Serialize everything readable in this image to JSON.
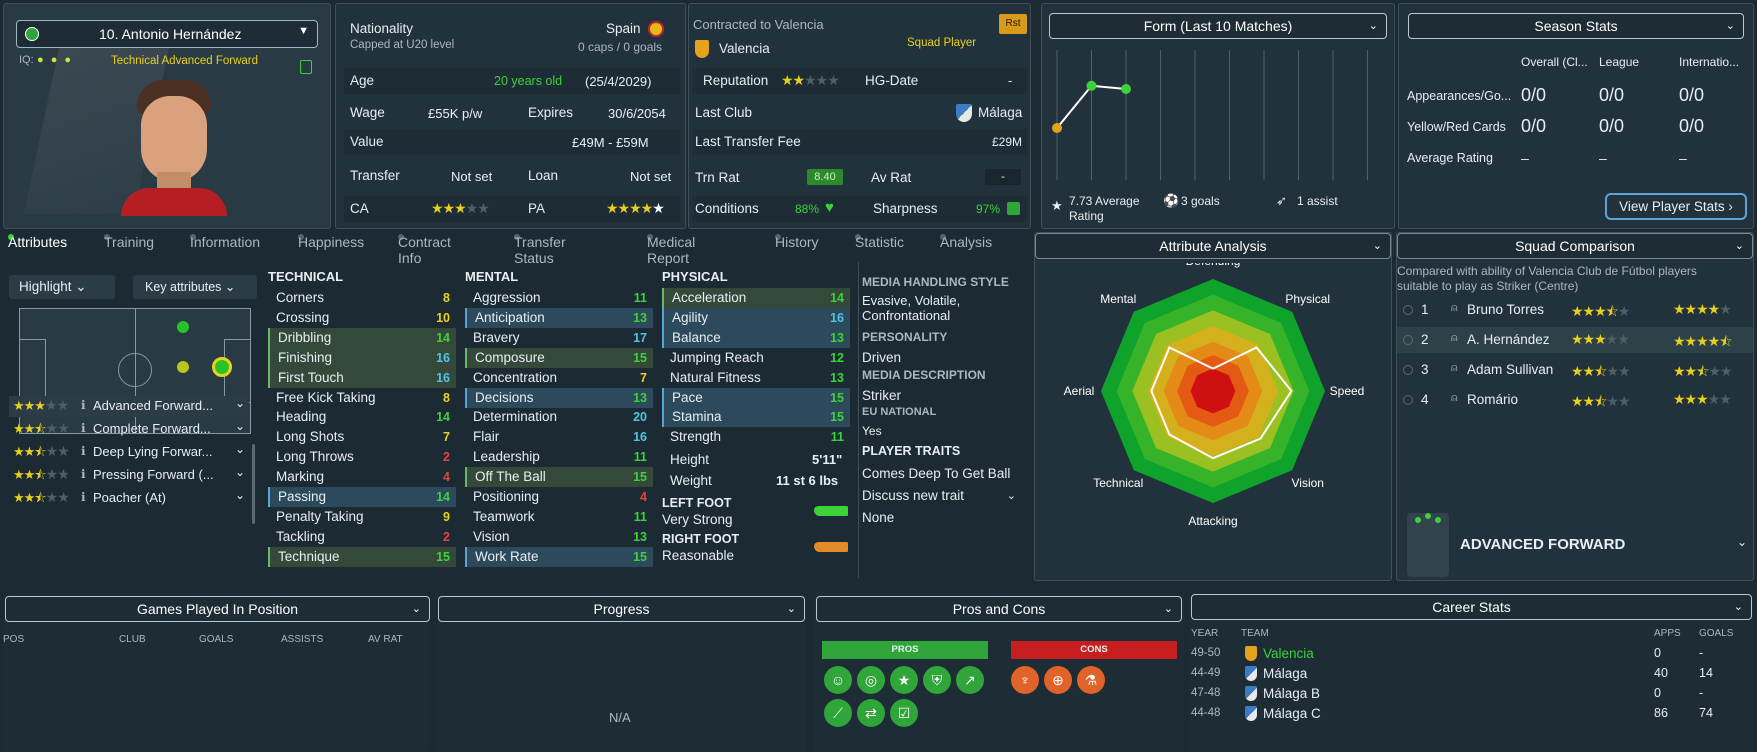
{
  "player": {
    "name": "10. Antonio Hernández",
    "role": "Technical Advanced Forward",
    "iq_label": "IQ:"
  },
  "info": {
    "nationality_label": "Nationality",
    "nationality_sub": "Capped at U20 level",
    "nation": "Spain",
    "caps": "0 caps / 0 goals",
    "age_label": "Age",
    "age": "20 years old",
    "dob": "(25/4/2029)",
    "wage_label": "Wage",
    "wage": "£55K p/w",
    "expires_label": "Expires",
    "expires": "30/6/2054",
    "value_label": "Value",
    "value": "£49M - £59M",
    "transfer_label": "Transfer",
    "transfer": "Not set",
    "loan_label": "Loan",
    "loan": "Not set",
    "ca_label": "CA",
    "pa_label": "PA"
  },
  "contract": {
    "contracted": "Contracted to Valencia",
    "club": "Valencia",
    "status": "Squad Player",
    "badge": "Rst",
    "rep_label": "Reputation",
    "hg_label": "HG-Date",
    "hg": "-",
    "last_club_label": "Last Club",
    "last_club": "Málaga",
    "fee_label": "Last Transfer Fee",
    "fee": "£29M",
    "trn_label": "Trn Rat",
    "trn": "8.40",
    "av_label": "Av Rat",
    "av": "-",
    "cond_label": "Conditions",
    "cond": "88%",
    "sharp_label": "Sharpness",
    "sharp": "97%"
  },
  "form": {
    "title": "Form (Last 10 Matches)",
    "avg": "7.73 Average Rating",
    "goals": "3 goals",
    "assists": "1 assist",
    "points": [
      6.6,
      7.9,
      7.8
    ]
  },
  "season": {
    "title": "Season Stats",
    "cols": [
      "Overall (Cl...",
      "League",
      "Internatio..."
    ],
    "rows": [
      {
        "label": "Appearances/Go...",
        "vals": [
          "0/0",
          "0/0",
          "0/0"
        ]
      },
      {
        "label": "Yellow/Red Cards",
        "vals": [
          "0/0",
          "0/0",
          "0/0"
        ]
      },
      {
        "label": "Average Rating",
        "vals": [
          "–",
          "–",
          "–"
        ]
      }
    ],
    "button": "View Player Stats"
  },
  "tabs": [
    "Attributes",
    "Training",
    "Information",
    "Happiness",
    "Contract Info",
    "Transfer Status",
    "Medical Report",
    "History",
    "Statistic",
    "Analysis"
  ],
  "highlight": "Highlight",
  "key_attrs": "Key attributes",
  "roles": [
    {
      "name": "Advanced Forward...",
      "stars": 3
    },
    {
      "name": "Complete Forward...",
      "stars": 2.5
    },
    {
      "name": "Deep Lying Forwar...",
      "stars": 2.5
    },
    {
      "name": "Pressing Forward (...",
      "stars": 2.5
    },
    {
      "name": "Poacher (At)",
      "stars": 2.5
    }
  ],
  "technical": {
    "title": "TECHNICAL",
    "rows": [
      {
        "n": "Corners",
        "v": "8",
        "c": "yellow",
        "m": ""
      },
      {
        "n": "Crossing",
        "v": "10",
        "c": "yellow",
        "m": ""
      },
      {
        "n": "Dribbling",
        "v": "14",
        "c": "green",
        "m": "g"
      },
      {
        "n": "Finishing",
        "v": "16",
        "c": "cyan",
        "m": "g"
      },
      {
        "n": "First Touch",
        "v": "16",
        "c": "cyan",
        "m": "g"
      },
      {
        "n": "Free Kick Taking",
        "v": "8",
        "c": "yellow",
        "m": ""
      },
      {
        "n": "Heading",
        "v": "14",
        "c": "green",
        "m": ""
      },
      {
        "n": "Long Shots",
        "v": "7",
        "c": "yellow",
        "m": ""
      },
      {
        "n": "Long Throws",
        "v": "2",
        "c": "red",
        "m": ""
      },
      {
        "n": "Marking",
        "v": "4",
        "c": "red",
        "m": ""
      },
      {
        "n": "Passing",
        "v": "14",
        "c": "green",
        "m": "b"
      },
      {
        "n": "Penalty Taking",
        "v": "9",
        "c": "yellow",
        "m": ""
      },
      {
        "n": "Tackling",
        "v": "2",
        "c": "red",
        "m": ""
      },
      {
        "n": "Technique",
        "v": "15",
        "c": "green",
        "m": "g"
      }
    ]
  },
  "mental": {
    "title": "MENTAL",
    "rows": [
      {
        "n": "Aggression",
        "v": "11",
        "c": "green",
        "m": ""
      },
      {
        "n": "Anticipation",
        "v": "13",
        "c": "green",
        "m": "b"
      },
      {
        "n": "Bravery",
        "v": "17",
        "c": "cyan",
        "m": ""
      },
      {
        "n": "Composure",
        "v": "15",
        "c": "green",
        "m": "g"
      },
      {
        "n": "Concentration",
        "v": "7",
        "c": "yellow",
        "m": ""
      },
      {
        "n": "Decisions",
        "v": "13",
        "c": "green",
        "m": "b"
      },
      {
        "n": "Determination",
        "v": "20",
        "c": "cyan",
        "m": ""
      },
      {
        "n": "Flair",
        "v": "16",
        "c": "cyan",
        "m": ""
      },
      {
        "n": "Leadership",
        "v": "11",
        "c": "green",
        "m": ""
      },
      {
        "n": "Off The Ball",
        "v": "15",
        "c": "green",
        "m": "g"
      },
      {
        "n": "Positioning",
        "v": "4",
        "c": "red",
        "m": ""
      },
      {
        "n": "Teamwork",
        "v": "11",
        "c": "green",
        "m": ""
      },
      {
        "n": "Vision",
        "v": "13",
        "c": "green",
        "m": ""
      },
      {
        "n": "Work Rate",
        "v": "15",
        "c": "green",
        "m": "b"
      }
    ]
  },
  "physical": {
    "title": "PHYSICAL",
    "rows": [
      {
        "n": "Acceleration",
        "v": "14",
        "c": "green",
        "m": "g"
      },
      {
        "n": "Agility",
        "v": "16",
        "c": "cyan",
        "m": "b"
      },
      {
        "n": "Balance",
        "v": "13",
        "c": "green",
        "m": "b"
      },
      {
        "n": "Jumping Reach",
        "v": "12",
        "c": "green",
        "m": ""
      },
      {
        "n": "Natural Fitness",
        "v": "13",
        "c": "green",
        "m": ""
      },
      {
        "n": "Pace",
        "v": "15",
        "c": "green",
        "m": "b"
      },
      {
        "n": "Stamina",
        "v": "15",
        "c": "green",
        "m": "b"
      },
      {
        "n": "Strength",
        "v": "11",
        "c": "green",
        "m": ""
      }
    ],
    "height_label": "Height",
    "height": "5'11\"",
    "weight_label": "Weight",
    "weight": "11 st 6 lbs",
    "left_foot_label": "LEFT FOOT",
    "left_foot": "Very Strong",
    "right_foot_label": "RIGHT FOOT",
    "right_foot": "Reasonable"
  },
  "media": {
    "h1": "MEDIA HANDLING STYLE",
    "style": "Evasive, Volatile, Confrontational",
    "h2": "PERSONALITY",
    "personality": "Driven",
    "h3": "MEDIA DESCRIPTION",
    "desc": "Striker",
    "h4": "EU NATIONAL",
    "eu": "Yes",
    "h5": "PLAYER TRAITS",
    "trait": "Comes Deep To Get Ball",
    "discuss": "Discuss new trait",
    "none": "None"
  },
  "analysis": {
    "title": "Attribute Analysis",
    "labels": [
      "Defending",
      "Physical",
      "Speed",
      "Vision",
      "Attacking",
      "Technical",
      "Aerial",
      "Mental"
    ],
    "values": [
      0.2,
      0.55,
      0.7,
      0.6,
      0.6,
      0.55,
      0.55,
      0.55
    ]
  },
  "squad": {
    "title": "Squad Comparison",
    "desc": "Compared with ability of Valencia Club de Fútbol players suitable to play as Striker (Centre)",
    "rows": [
      {
        "rank": "1",
        "name": "Bruno Torres",
        "ca": 3.5,
        "pa": 4
      },
      {
        "rank": "2",
        "name": "A. Hernández",
        "ca": 3,
        "pa": 4.5
      },
      {
        "rank": "3",
        "name": "Adam Sullivan",
        "ca": 2.5,
        "pa": 2.5
      },
      {
        "rank": "4",
        "name": "Romário",
        "ca": 2.5,
        "pa": 3
      }
    ],
    "role": "ADVANCED FORWARD"
  },
  "bottom": {
    "gp_title": "Games Played In Position",
    "gp_cols": [
      "POS",
      "CLUB",
      "GOALS",
      "ASSISTS",
      "AV RAT"
    ],
    "progress_title": "Progress",
    "na": "N/A",
    "pc_title": "Pros and Cons",
    "pros": "PROS",
    "cons": "CONS",
    "career_title": "Career Stats",
    "career_cols": [
      "YEAR",
      "TEAM",
      "APPS",
      "GOALS"
    ],
    "career": [
      {
        "y": "49-50",
        "t": "Valencia",
        "a": "0",
        "g": "-"
      },
      {
        "y": "44-49",
        "t": "Málaga",
        "a": "40",
        "g": "14"
      },
      {
        "y": "47-48",
        "t": "Málaga B",
        "a": "0",
        "g": "-"
      },
      {
        "y": "44-48",
        "t": "Málaga C",
        "a": "86",
        "g": "74"
      }
    ]
  },
  "colors": {
    "accent": "#5aa3d6",
    "green": "#3cd23a",
    "yellow": "#e9d21b",
    "cyan": "#4fc4e6",
    "red": "#e3473b"
  }
}
